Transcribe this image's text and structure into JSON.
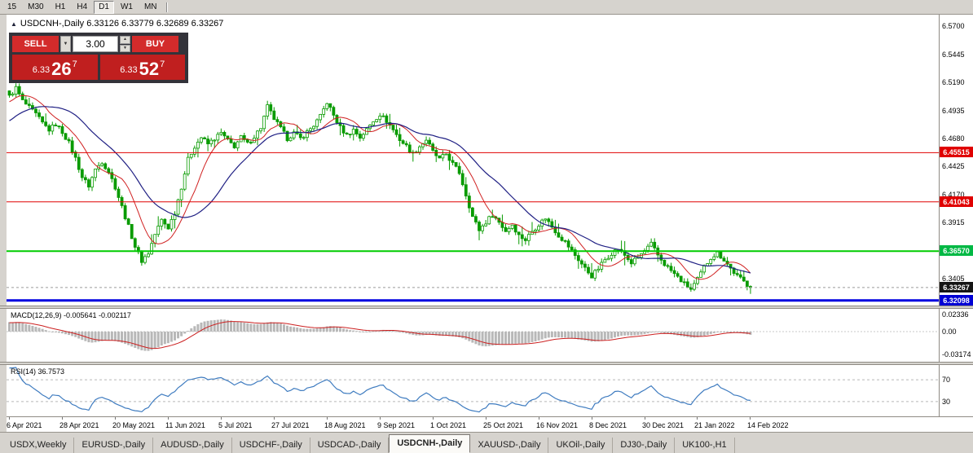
{
  "window": {
    "toolbar": {
      "timeframes": [
        "15",
        "M30",
        "H1",
        "H4",
        "D1",
        "W1",
        "MN"
      ],
      "active": "D1"
    }
  },
  "icons": {
    "collapse_arrow": "▲",
    "chevron_down": "▼",
    "spinner_up": "▲",
    "spinner_down": "▼"
  },
  "chart": {
    "title": "USDCNH-,Daily  6.33126 6.33779 6.32689 6.33267",
    "symbol": "USDCNH-",
    "period": "Daily",
    "ohlc": {
      "open": "6.33126",
      "high": "6.33779",
      "low": "6.32689",
      "close": "6.33267"
    }
  },
  "one_click": {
    "sell_label": "SELL",
    "buy_label": "BUY",
    "lot": "3.00",
    "sell_price": {
      "base": "6.33",
      "pips": "26",
      "pipette": "7"
    },
    "buy_price": {
      "base": "6.33",
      "pips": "52",
      "pipette": "7"
    }
  },
  "price_axis": {
    "labels": [
      "6.5700",
      "6.5445",
      "6.5190",
      "6.4935",
      "6.4680",
      "6.4425",
      "6.4170",
      "6.3915",
      "6.3660",
      "6.3405"
    ],
    "badges": [
      {
        "text": "6.45515",
        "color": "#e00000"
      },
      {
        "text": "6.41043",
        "color": "#e00000"
      },
      {
        "text": "6.36570",
        "color": "#00b844"
      },
      {
        "text": "6.33267",
        "color": "#151515"
      },
      {
        "text": "6.32098",
        "color": "#0000d4"
      }
    ]
  },
  "macd": {
    "label": "MACD(12,26,9) -0.005641 -0.002117",
    "axis_labels": [
      "0.02336",
      "0.00",
      "-0.03174"
    ]
  },
  "rsi": {
    "label": "RSI(14) 36.7573",
    "axis_labels": [
      "70",
      "30"
    ]
  },
  "time_axis": {
    "dates": [
      "6 Apr 2021",
      "28 Apr 2021",
      "20 May 2021",
      "11 Jun 2021",
      "5 Jul 2021",
      "27 Jul 2021",
      "18 Aug 2021",
      "9 Sep 2021",
      "1 Oct 2021",
      "25 Oct 2021",
      "16 Nov 2021",
      "8 Dec 2021",
      "30 Dec 2021",
      "21 Jan 2022",
      "14 Feb 2022"
    ]
  },
  "tabs": {
    "items": [
      "USDX,Weekly",
      "EURUSD-,Daily",
      "AUDUSD-,Daily",
      "USDCHF-,Daily",
      "USDCAD-,Daily",
      "USDCNH-,Daily",
      "XAUUSD-,Daily",
      "UKOil-,Daily",
      "DJ30-,Daily",
      "UK100-,H1"
    ],
    "active": "USDCNH-,Daily"
  },
  "chart_data": {
    "type": "candlestick",
    "symbol": "USDCNH-",
    "timeframe": "Daily",
    "bars": 225,
    "last_price": 6.33267,
    "last_low": 6.32689,
    "close_keypoints": [
      [
        0,
        6.506
      ],
      [
        2,
        6.514
      ],
      [
        4,
        6.502
      ],
      [
        6,
        6.496
      ],
      [
        8,
        6.49
      ],
      [
        10,
        6.482
      ],
      [
        12,
        6.476
      ],
      [
        14,
        6.481
      ],
      [
        16,
        6.474
      ],
      [
        18,
        6.464
      ],
      [
        20,
        6.45
      ],
      [
        22,
        6.433
      ],
      [
        24,
        6.425
      ],
      [
        26,
        6.44
      ],
      [
        28,
        6.447
      ],
      [
        30,
        6.438
      ],
      [
        32,
        6.424
      ],
      [
        34,
        6.406
      ],
      [
        36,
        6.388
      ],
      [
        38,
        6.37
      ],
      [
        40,
        6.357
      ],
      [
        42,
        6.364
      ],
      [
        44,
        6.381
      ],
      [
        46,
        6.394
      ],
      [
        48,
        6.387
      ],
      [
        50,
        6.401
      ],
      [
        52,
        6.424
      ],
      [
        54,
        6.449
      ],
      [
        56,
        6.461
      ],
      [
        58,
        6.469
      ],
      [
        60,
        6.463
      ],
      [
        62,
        6.468
      ],
      [
        64,
        6.473
      ],
      [
        66,
        6.466
      ],
      [
        68,
        6.461
      ],
      [
        70,
        6.469
      ],
      [
        72,
        6.463
      ],
      [
        74,
        6.47
      ],
      [
        76,
        6.478
      ],
      [
        78,
        6.497
      ],
      [
        80,
        6.486
      ],
      [
        82,
        6.477
      ],
      [
        84,
        6.468
      ],
      [
        86,
        6.473
      ],
      [
        88,
        6.468
      ],
      [
        90,
        6.474
      ],
      [
        92,
        6.48
      ],
      [
        94,
        6.488
      ],
      [
        96,
        6.501
      ],
      [
        98,
        6.489
      ],
      [
        100,
        6.478
      ],
      [
        102,
        6.471
      ],
      [
        104,
        6.476
      ],
      [
        106,
        6.469
      ],
      [
        108,
        6.476
      ],
      [
        110,
        6.484
      ],
      [
        112,
        6.49
      ],
      [
        114,
        6.484
      ],
      [
        116,
        6.476
      ],
      [
        118,
        6.467
      ],
      [
        120,
        6.461
      ],
      [
        122,
        6.454
      ],
      [
        124,
        6.461
      ],
      [
        126,
        6.467
      ],
      [
        128,
        6.456
      ],
      [
        130,
        6.449
      ],
      [
        132,
        6.454
      ],
      [
        134,
        6.445
      ],
      [
        136,
        6.437
      ],
      [
        138,
        6.417
      ],
      [
        140,
        6.397
      ],
      [
        142,
        6.385
      ],
      [
        144,
        6.392
      ],
      [
        146,
        6.399
      ],
      [
        148,
        6.392
      ],
      [
        150,
        6.384
      ],
      [
        152,
        6.39
      ],
      [
        154,
        6.38
      ],
      [
        156,
        6.376
      ],
      [
        158,
        6.384
      ],
      [
        160,
        6.39
      ],
      [
        162,
        6.396
      ],
      [
        164,
        6.388
      ],
      [
        166,
        6.38
      ],
      [
        168,
        6.374
      ],
      [
        170,
        6.366
      ],
      [
        172,
        6.358
      ],
      [
        174,
        6.35
      ],
      [
        176,
        6.343
      ],
      [
        178,
        6.35
      ],
      [
        180,
        6.358
      ],
      [
        182,
        6.364
      ],
      [
        184,
        6.368
      ],
      [
        186,
        6.362
      ],
      [
        188,
        6.355
      ],
      [
        190,
        6.36
      ],
      [
        192,
        6.366
      ],
      [
        194,
        6.372
      ],
      [
        196,
        6.362
      ],
      [
        198,
        6.354
      ],
      [
        200,
        6.348
      ],
      [
        202,
        6.342
      ],
      [
        204,
        6.336
      ],
      [
        206,
        6.331
      ],
      [
        208,
        6.34
      ],
      [
        210,
        6.351
      ],
      [
        212,
        6.36
      ],
      [
        214,
        6.364
      ],
      [
        216,
        6.358
      ],
      [
        218,
        6.35
      ],
      [
        220,
        6.343
      ],
      [
        222,
        6.338
      ],
      [
        224,
        6.33267
      ]
    ],
    "hlines": [
      {
        "price": 6.45515,
        "color": "#e00000",
        "width": 1
      },
      {
        "price": 6.41043,
        "color": "#e00000",
        "width": 1
      },
      {
        "price": 6.3657,
        "color": "#00cc00",
        "width": 2
      },
      {
        "price": 6.32098,
        "color": "#0000e0",
        "width": 3
      }
    ],
    "ma_fast": {
      "period": 10,
      "color": "#d02020"
    },
    "ma_slow": {
      "period": 25,
      "color": "#202084"
    },
    "macd": {
      "fast": 12,
      "slow": 26,
      "signal": 9,
      "value_main": -0.005641,
      "value_signal": -0.002117
    },
    "rsi": {
      "period": 14,
      "value": 36.7573,
      "levels": [
        70,
        30
      ]
    },
    "colors": {
      "candle": "#089b00",
      "candle_up_fill": "#ffffff",
      "macd_hist": "#b8b8b8",
      "macd_signal": "#cc2020",
      "rsi_line": "#3f7cc0",
      "level_line": "#b8b8b8",
      "bid_line": "#9a9a9a"
    }
  }
}
